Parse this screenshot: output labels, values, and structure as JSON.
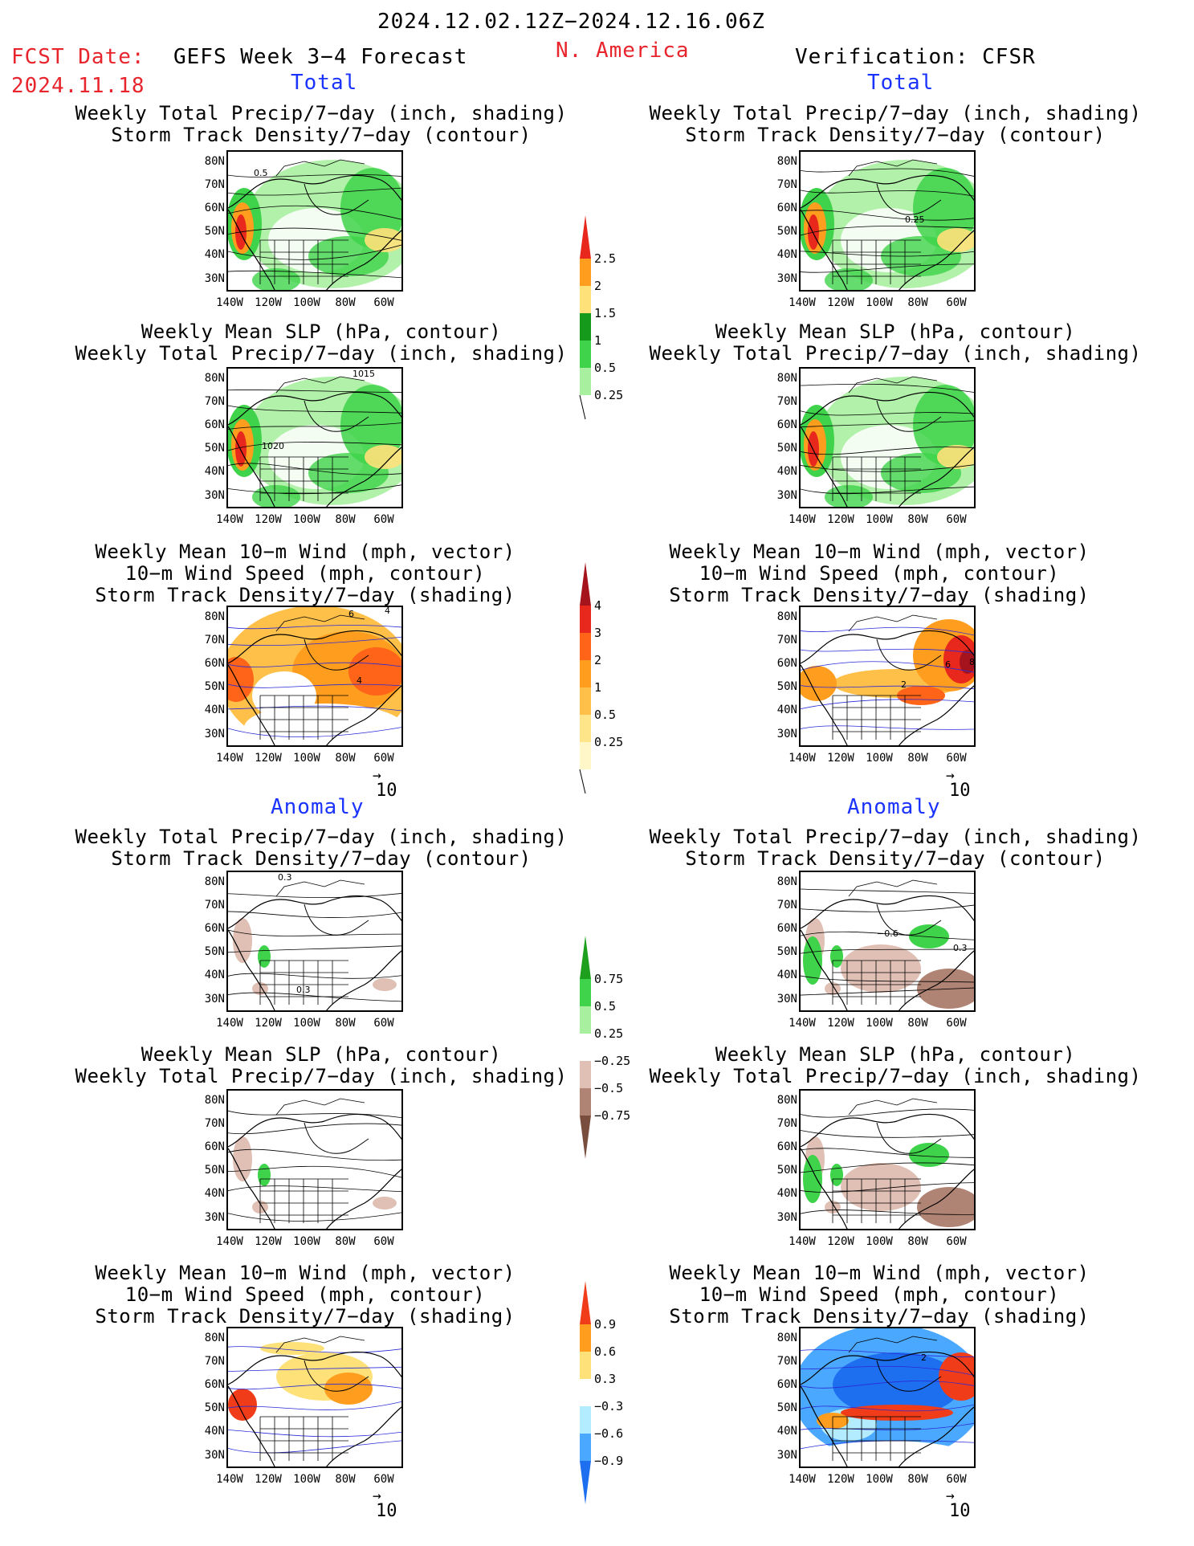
{
  "header": {
    "period": "2024.12.02.12Z−2024.12.16.06Z",
    "fcst_date_label": "FCST Date:",
    "fcst_date_value": "2024.11.18",
    "model": "GEFS Week 3−4 Forecast",
    "region": "N. America",
    "verification": "Verification: CFSR",
    "section_total": "Total",
    "section_anomaly": "Anomaly"
  },
  "titles": {
    "precip_storm": [
      "Weekly Total Precip/7−day (inch, shading)",
      "Storm Track Density/7−day (contour)"
    ],
    "slp_precip": [
      "Weekly Mean SLP (hPa, contour)",
      "Weekly Total Precip/7−day (inch, shading)"
    ],
    "wind_storm": [
      "Weekly Mean 10−m Wind (mph, vector)",
      "10−m Wind Speed (mph, contour)",
      "Storm Track Density/7−day (shading)"
    ]
  },
  "axes": {
    "lat": [
      "80N",
      "70N",
      "60N",
      "50N",
      "40N",
      "30N"
    ],
    "lon": [
      "140W",
      "120W",
      "100W",
      "80W",
      "60W"
    ]
  },
  "vector_ref": "10",
  "contour_labels": {
    "total_precip_fcst": "0.5",
    "total_precip_obs": "0.25",
    "total_slp_fcst_a": "1015",
    "total_slp_fcst_b": "1020",
    "total_wind_fcst_a": "6",
    "total_wind_fcst_b": "4",
    "total_wind_fcst_c": "4",
    "total_wind_obs_a": "6",
    "total_wind_obs_b": "8",
    "total_wind_obs_c": "2",
    "anom_precip_fcst_a": "0.3",
    "anom_precip_fcst_b": "0.3",
    "anom_precip_obs_a": "−0.6",
    "anom_precip_obs_b": "0.3",
    "anom_wind_obs": "2"
  },
  "colorbars": {
    "precip_total": {
      "labels": [
        "2.5",
        "2",
        "1.5",
        "1",
        "0.5",
        "0.25"
      ],
      "colors": [
        "#e8281c",
        "#ff9e1e",
        "#ffe17a",
        "#159a1c",
        "#3ed34a",
        "#a8f0a0"
      ]
    },
    "storm_total": {
      "labels": [
        "4",
        "3",
        "2",
        "1",
        "0.5",
        "0.25"
      ],
      "colors": [
        "#a5141c",
        "#e8281c",
        "#ff6418",
        "#ff9e1e",
        "#ffc04a",
        "#ffe58a",
        "#fff7c8"
      ]
    },
    "precip_anom": {
      "labels": [
        "0.75",
        "0.5",
        "0.25",
        "−0.25",
        "−0.5",
        "−0.75"
      ],
      "colors": [
        "#1ea01e",
        "#3ed34a",
        "#a8f0a0",
        "#ffffff",
        "#e0c0b4",
        "#b08474",
        "#7a4e3e"
      ]
    },
    "storm_anom": {
      "labels": [
        "0.9",
        "0.6",
        "0.3",
        "−0.3",
        "−0.6",
        "−0.9"
      ],
      "colors": [
        "#f03c18",
        "#ff9e1e",
        "#ffe17a",
        "#ffffff",
        "#b4ecff",
        "#4aa8ff",
        "#1e6ef0"
      ]
    }
  }
}
